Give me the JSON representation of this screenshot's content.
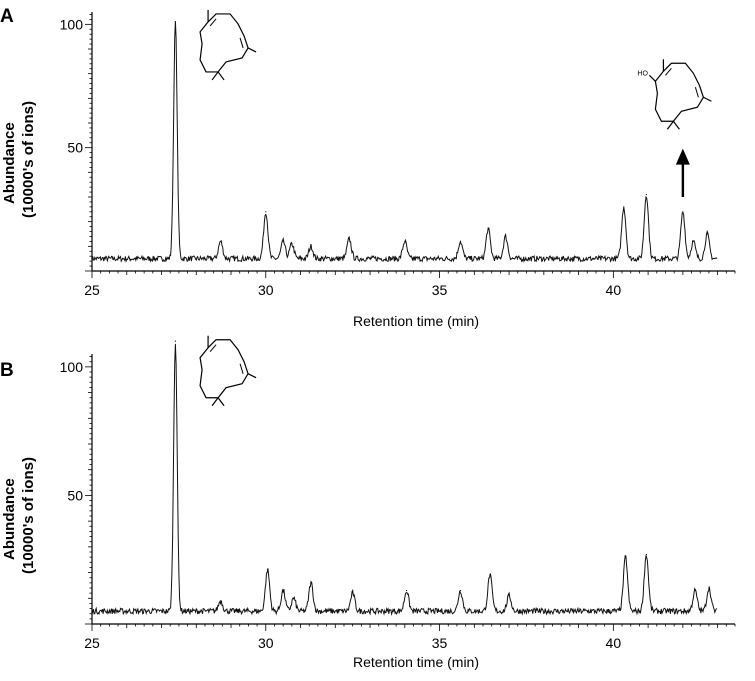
{
  "chart_data": [
    {
      "panel_label": "A",
      "type": "line",
      "xlabel": "Retention time (min)",
      "ylabel_line1": "Abundance",
      "ylabel_line2": "(10000's of ions)",
      "xlim": [
        25,
        43.5
      ],
      "ylim": [
        0,
        105
      ],
      "xticks": [
        25,
        30,
        35,
        40
      ],
      "yticks": [
        50,
        100
      ],
      "baseline": 5,
      "x_end": 43.0,
      "peaks": [
        {
          "x": 27.4,
          "y": 101
        },
        {
          "x": 28.7,
          "y": 12
        },
        {
          "x": 30.0,
          "y": 24
        },
        {
          "x": 30.5,
          "y": 12
        },
        {
          "x": 30.75,
          "y": 11
        },
        {
          "x": 31.3,
          "y": 10
        },
        {
          "x": 32.4,
          "y": 13
        },
        {
          "x": 34.0,
          "y": 12
        },
        {
          "x": 35.6,
          "y": 12
        },
        {
          "x": 36.4,
          "y": 17
        },
        {
          "x": 36.9,
          "y": 14
        },
        {
          "x": 40.3,
          "y": 26
        },
        {
          "x": 40.95,
          "y": 31
        },
        {
          "x": 42.0,
          "y": 24
        },
        {
          "x": 42.3,
          "y": 12
        },
        {
          "x": 42.7,
          "y": 15
        }
      ],
      "structures": [
        {
          "kind": "macrocycle",
          "x": 28.8,
          "y": 88
        },
        {
          "kind": "macrocycle-oh",
          "x": 41.9,
          "y": 68,
          "label": "HO"
        }
      ],
      "arrow": {
        "x": 42.0,
        "y_from": 30,
        "y_to": 48
      }
    },
    {
      "panel_label": "B",
      "type": "line",
      "xlabel": "Retention time (min)",
      "ylabel_line1": "Abundance",
      "ylabel_line2": "(10000's of ions)",
      "xlim": [
        25,
        43.5
      ],
      "ylim": [
        0,
        105
      ],
      "xticks": [
        25,
        30,
        35,
        40
      ],
      "yticks": [
        50,
        100
      ],
      "baseline": 5,
      "x_end": 43.0,
      "peaks": [
        {
          "x": 27.4,
          "y": 110
        },
        {
          "x": 28.7,
          "y": 9
        },
        {
          "x": 30.05,
          "y": 21
        },
        {
          "x": 30.5,
          "y": 13
        },
        {
          "x": 30.8,
          "y": 10
        },
        {
          "x": 31.3,
          "y": 16
        },
        {
          "x": 32.5,
          "y": 12
        },
        {
          "x": 34.05,
          "y": 13
        },
        {
          "x": 35.6,
          "y": 13
        },
        {
          "x": 36.45,
          "y": 19
        },
        {
          "x": 37.0,
          "y": 11
        },
        {
          "x": 40.35,
          "y": 26
        },
        {
          "x": 40.95,
          "y": 27
        },
        {
          "x": 42.35,
          "y": 13
        },
        {
          "x": 42.75,
          "y": 14
        }
      ],
      "structures": [
        {
          "kind": "macrocycle",
          "x": 28.8,
          "y": 95
        }
      ]
    }
  ]
}
